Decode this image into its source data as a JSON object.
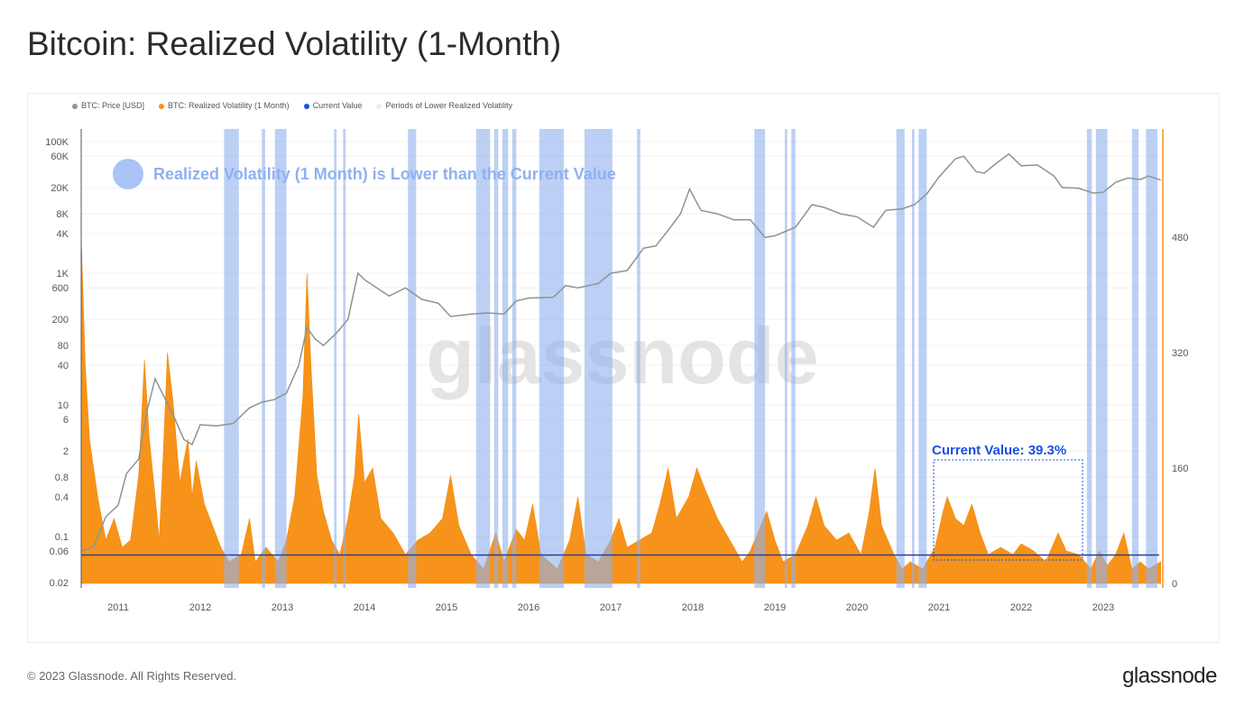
{
  "page": {
    "title": "Bitcoin: Realized Volatility (1-Month)",
    "footer": "© 2023 Glassnode. All Rights Reserved.",
    "logo": "glassnode",
    "watermark": "glassnode"
  },
  "chart_data": {
    "type": "line+area",
    "title": "Bitcoin: Realized Volatility (1-Month)",
    "legend": [
      {
        "name": "BTC: Price [USD]",
        "color": "#8a9690"
      },
      {
        "name": "BTC: Realized Volatility (1 Month)",
        "color": "#f7931a"
      },
      {
        "name": "Current Value",
        "color": "#1a4fe0"
      },
      {
        "name": "Periods of Lower Realized Volatility",
        "color": "#e6ecf7"
      }
    ],
    "legend_position": "top-left",
    "annotation": "Realized Volatility (1 Month) is Lower than the Current Value",
    "current_value_label": "Current Value: 39.3%",
    "current_value": 39.3,
    "x_ticks": [
      "2011",
      "2012",
      "2013",
      "2014",
      "2015",
      "2016",
      "2017",
      "2018",
      "2019",
      "2020",
      "2021",
      "2022",
      "2023"
    ],
    "xlim": [
      2010.55,
      2023.7
    ],
    "left_axis": {
      "scale": "log",
      "ylim": [
        0.02,
        100000
      ],
      "ticks": [
        "100K",
        "60K",
        "20K",
        "8K",
        "4K",
        "1K",
        "600",
        "200",
        "80",
        "40",
        "10",
        "6",
        "2",
        "0.8",
        "0.4",
        "0.1",
        "0.06",
        "0.02"
      ],
      "tick_values": [
        100000,
        60000,
        20000,
        8000,
        4000,
        1000,
        600,
        200,
        80,
        40,
        10,
        6,
        2,
        0.8,
        0.4,
        0.1,
        0.06,
        0.02
      ]
    },
    "right_axis": {
      "scale": "linear",
      "ylim": [
        0,
        630
      ],
      "ticks": [
        "0",
        "160",
        "320",
        "480"
      ],
      "tick_values": [
        0,
        160,
        320,
        480
      ]
    },
    "grid": true,
    "price": [
      [
        2010.55,
        0.06
      ],
      [
        2010.7,
        0.07
      ],
      [
        2010.85,
        0.2
      ],
      [
        2011.0,
        0.3
      ],
      [
        2011.1,
        0.9
      ],
      [
        2011.25,
        1.5
      ],
      [
        2011.35,
        8
      ],
      [
        2011.45,
        25
      ],
      [
        2011.55,
        14
      ],
      [
        2011.65,
        8
      ],
      [
        2011.8,
        3
      ],
      [
        2011.9,
        2.5
      ],
      [
        2012.0,
        5
      ],
      [
        2012.2,
        4.8
      ],
      [
        2012.4,
        5.2
      ],
      [
        2012.6,
        9
      ],
      [
        2012.75,
        11
      ],
      [
        2012.9,
        12
      ],
      [
        2013.05,
        15
      ],
      [
        2013.2,
        40
      ],
      [
        2013.3,
        150
      ],
      [
        2013.4,
        100
      ],
      [
        2013.5,
        80
      ],
      [
        2013.65,
        120
      ],
      [
        2013.8,
        200
      ],
      [
        2013.92,
        1000
      ],
      [
        2014.0,
        800
      ],
      [
        2014.15,
        600
      ],
      [
        2014.3,
        450
      ],
      [
        2014.5,
        600
      ],
      [
        2014.7,
        400
      ],
      [
        2014.9,
        350
      ],
      [
        2015.05,
        220
      ],
      [
        2015.3,
        240
      ],
      [
        2015.5,
        250
      ],
      [
        2015.7,
        240
      ],
      [
        2015.85,
        380
      ],
      [
        2016.0,
        420
      ],
      [
        2016.3,
        430
      ],
      [
        2016.45,
        650
      ],
      [
        2016.6,
        600
      ],
      [
        2016.85,
        700
      ],
      [
        2017.0,
        1000
      ],
      [
        2017.2,
        1100
      ],
      [
        2017.4,
        2400
      ],
      [
        2017.55,
        2600
      ],
      [
        2017.7,
        4500
      ],
      [
        2017.85,
        8000
      ],
      [
        2017.96,
        19000
      ],
      [
        2018.1,
        9000
      ],
      [
        2018.3,
        8000
      ],
      [
        2018.5,
        6500
      ],
      [
        2018.7,
        6500
      ],
      [
        2018.88,
        3500
      ],
      [
        2019.0,
        3700
      ],
      [
        2019.25,
        5000
      ],
      [
        2019.45,
        11000
      ],
      [
        2019.6,
        10000
      ],
      [
        2019.8,
        8000
      ],
      [
        2020.0,
        7200
      ],
      [
        2020.2,
        5000
      ],
      [
        2020.35,
        9000
      ],
      [
        2020.55,
        9500
      ],
      [
        2020.7,
        11000
      ],
      [
        2020.85,
        16000
      ],
      [
        2021.0,
        29000
      ],
      [
        2021.2,
        55000
      ],
      [
        2021.3,
        60000
      ],
      [
        2021.45,
        35000
      ],
      [
        2021.55,
        33000
      ],
      [
        2021.7,
        47000
      ],
      [
        2021.85,
        65000
      ],
      [
        2022.0,
        43000
      ],
      [
        2022.2,
        44000
      ],
      [
        2022.4,
        30000
      ],
      [
        2022.5,
        20000
      ],
      [
        2022.7,
        19500
      ],
      [
        2022.88,
        16500
      ],
      [
        2023.0,
        17000
      ],
      [
        2023.15,
        24000
      ],
      [
        2023.3,
        28000
      ],
      [
        2023.45,
        26500
      ],
      [
        2023.55,
        30000
      ],
      [
        2023.7,
        26000
      ]
    ],
    "realized_volatility": [
      [
        2010.55,
        480
      ],
      [
        2010.6,
        300
      ],
      [
        2010.65,
        200
      ],
      [
        2010.75,
        120
      ],
      [
        2010.85,
        60
      ],
      [
        2010.95,
        90
      ],
      [
        2011.05,
        50
      ],
      [
        2011.15,
        60
      ],
      [
        2011.25,
        150
      ],
      [
        2011.32,
        310
      ],
      [
        2011.38,
        200
      ],
      [
        2011.45,
        120
      ],
      [
        2011.5,
        60
      ],
      [
        2011.55,
        180
      ],
      [
        2011.6,
        320
      ],
      [
        2011.67,
        250
      ],
      [
        2011.75,
        140
      ],
      [
        2011.85,
        200
      ],
      [
        2011.9,
        120
      ],
      [
        2011.95,
        170
      ],
      [
        2012.05,
        110
      ],
      [
        2012.15,
        80
      ],
      [
        2012.25,
        50
      ],
      [
        2012.35,
        30
      ],
      [
        2012.5,
        40
      ],
      [
        2012.6,
        90
      ],
      [
        2012.67,
        30
      ],
      [
        2012.8,
        50
      ],
      [
        2012.95,
        30
      ],
      [
        2013.05,
        60
      ],
      [
        2013.15,
        120
      ],
      [
        2013.25,
        260
      ],
      [
        2013.3,
        430
      ],
      [
        2013.35,
        300
      ],
      [
        2013.42,
        150
      ],
      [
        2013.5,
        100
      ],
      [
        2013.6,
        60
      ],
      [
        2013.7,
        40
      ],
      [
        2013.8,
        90
      ],
      [
        2013.88,
        150
      ],
      [
        2013.93,
        235
      ],
      [
        2014.0,
        140
      ],
      [
        2014.1,
        160
      ],
      [
        2014.2,
        90
      ],
      [
        2014.35,
        70
      ],
      [
        2014.5,
        40
      ],
      [
        2014.65,
        60
      ],
      [
        2014.8,
        70
      ],
      [
        2014.95,
        90
      ],
      [
        2015.05,
        150
      ],
      [
        2015.15,
        80
      ],
      [
        2015.3,
        40
      ],
      [
        2015.45,
        20
      ],
      [
        2015.6,
        70
      ],
      [
        2015.7,
        30
      ],
      [
        2015.85,
        75
      ],
      [
        2015.95,
        60
      ],
      [
        2016.05,
        110
      ],
      [
        2016.15,
        40
      ],
      [
        2016.35,
        20
      ],
      [
        2016.5,
        60
      ],
      [
        2016.6,
        120
      ],
      [
        2016.7,
        40
      ],
      [
        2016.85,
        30
      ],
      [
        2017.0,
        60
      ],
      [
        2017.1,
        90
      ],
      [
        2017.2,
        50
      ],
      [
        2017.35,
        60
      ],
      [
        2017.5,
        70
      ],
      [
        2017.6,
        110
      ],
      [
        2017.7,
        160
      ],
      [
        2017.8,
        90
      ],
      [
        2017.95,
        120
      ],
      [
        2018.05,
        160
      ],
      [
        2018.15,
        130
      ],
      [
        2018.3,
        90
      ],
      [
        2018.45,
        60
      ],
      [
        2018.6,
        30
      ],
      [
        2018.7,
        45
      ],
      [
        2018.9,
        100
      ],
      [
        2019.0,
        60
      ],
      [
        2019.1,
        30
      ],
      [
        2019.25,
        40
      ],
      [
        2019.4,
        80
      ],
      [
        2019.5,
        120
      ],
      [
        2019.6,
        80
      ],
      [
        2019.75,
        60
      ],
      [
        2019.9,
        70
      ],
      [
        2020.05,
        40
      ],
      [
        2020.15,
        100
      ],
      [
        2020.22,
        160
      ],
      [
        2020.3,
        80
      ],
      [
        2020.45,
        40
      ],
      [
        2020.55,
        20
      ],
      [
        2020.65,
        30
      ],
      [
        2020.8,
        20
      ],
      [
        2020.95,
        50
      ],
      [
        2021.05,
        100
      ],
      [
        2021.1,
        120
      ],
      [
        2021.2,
        90
      ],
      [
        2021.3,
        80
      ],
      [
        2021.4,
        110
      ],
      [
        2021.5,
        70
      ],
      [
        2021.6,
        40
      ],
      [
        2021.75,
        50
      ],
      [
        2021.9,
        40
      ],
      [
        2022.0,
        55
      ],
      [
        2022.15,
        45
      ],
      [
        2022.3,
        30
      ],
      [
        2022.45,
        70
      ],
      [
        2022.55,
        45
      ],
      [
        2022.7,
        40
      ],
      [
        2022.85,
        20
      ],
      [
        2022.95,
        45
      ],
      [
        2023.05,
        25
      ],
      [
        2023.15,
        40
      ],
      [
        2023.25,
        70
      ],
      [
        2023.35,
        20
      ],
      [
        2023.45,
        30
      ],
      [
        2023.55,
        20
      ],
      [
        2023.7,
        30
      ]
    ],
    "lower_volatility_periods": [
      [
        2012.29,
        2012.47
      ],
      [
        2012.75,
        2012.79
      ],
      [
        2012.91,
        2013.05
      ],
      [
        2013.63,
        2013.66
      ],
      [
        2013.74,
        2013.77
      ],
      [
        2014.53,
        2014.63
      ],
      [
        2015.36,
        2015.53
      ],
      [
        2015.58,
        2015.63
      ],
      [
        2015.68,
        2015.75
      ],
      [
        2015.8,
        2015.85
      ],
      [
        2016.13,
        2016.43
      ],
      [
        2016.68,
        2017.02
      ],
      [
        2017.32,
        2017.36
      ],
      [
        2018.75,
        2018.88
      ],
      [
        2019.12,
        2019.15
      ],
      [
        2019.2,
        2019.25
      ],
      [
        2020.48,
        2020.58
      ],
      [
        2020.67,
        2020.7
      ],
      [
        2020.75,
        2020.85
      ],
      [
        2022.8,
        2022.86
      ],
      [
        2022.91,
        2023.05
      ],
      [
        2023.35,
        2023.43
      ],
      [
        2023.52,
        2023.66
      ]
    ]
  }
}
